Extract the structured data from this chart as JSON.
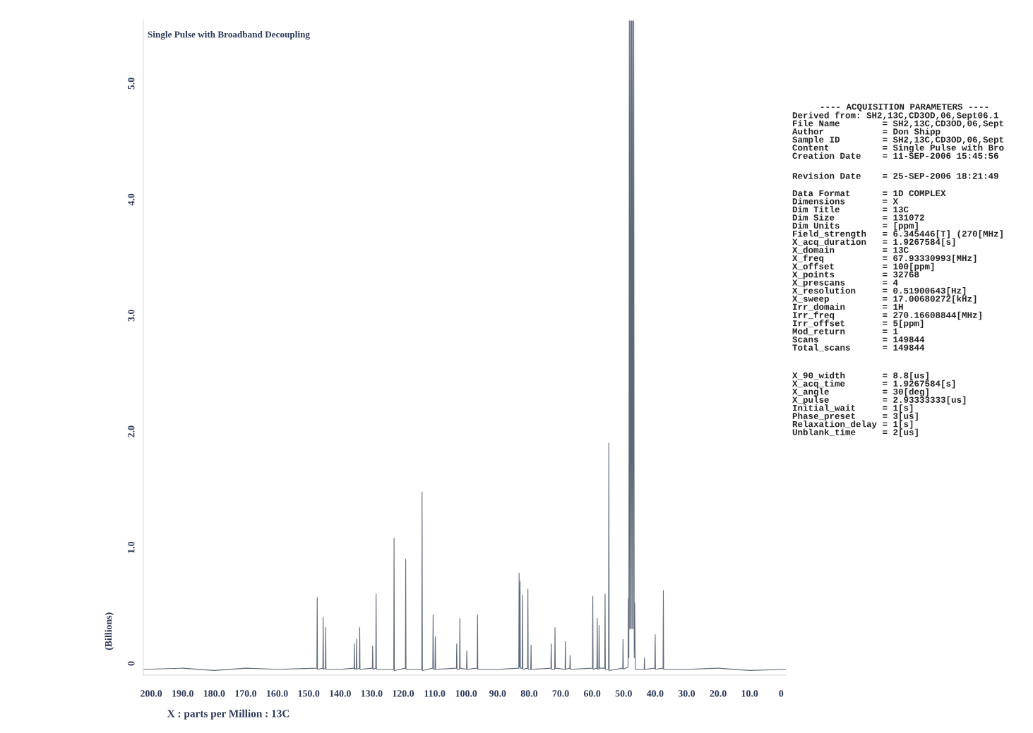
{
  "chart_data": [
    {
      "type": "line",
      "title": "Single Pulse with Broadband Decoupling",
      "xlabel": "X : parts per Million : 13C",
      "ylabel": "(Billions)",
      "x": [
        202.4,
        190,
        180,
        170,
        160,
        147.4,
        147.3,
        147.2,
        145.5,
        145.4,
        145.3,
        144.7,
        144.6,
        144.5,
        140,
        135.6,
        135.5,
        135.4,
        134.9,
        134.8,
        134.7,
        133.9,
        133.8,
        133.7,
        129.8,
        129.7,
        129.6,
        128.7,
        128.6,
        128.5,
        123.0,
        122.9,
        122.8,
        119.3,
        119.2,
        119.1,
        114.1,
        114.0,
        113.9,
        110.6,
        110.5,
        110.4,
        109.9,
        109.8,
        109.7,
        103.1,
        103.0,
        102.9,
        102.1,
        102.0,
        101.9,
        99.9,
        99.8,
        99.7,
        96.5,
        96.4,
        96.3,
        90,
        83.3,
        83.2,
        83.05,
        82.9,
        82.8,
        82.2,
        82.1,
        82.0,
        80.5,
        80.4,
        80.3,
        79.5,
        79.4,
        79.3,
        73.1,
        73.0,
        72.9,
        71.9,
        71.8,
        71.7,
        68.6,
        68.5,
        68.4,
        67.1,
        67.0,
        66.9,
        59.9,
        59.8,
        59.7,
        58.5,
        58.4,
        58.3,
        57.9,
        57.8,
        57.7,
        56.0,
        55.9,
        55.8,
        54.8,
        54.7,
        54.6,
        50.3,
        50.2,
        50.1,
        48.6,
        48.5,
        48.35,
        48.2,
        48.05,
        47.9,
        47.7,
        47.5,
        47.35,
        47.2,
        47.0,
        46.8,
        46.65,
        46.5,
        46.3,
        43.5,
        43.4,
        43.3,
        40.1,
        40.0,
        39.9,
        37.5,
        37.4,
        37.3,
        30,
        20,
        10,
        -1.4
      ],
      "series": [
        {
          "color": "#5d6878",
          "values": [
            -0.05,
            -0.04,
            -0.06,
            -0.04,
            -0.05,
            -0.04,
            0.57,
            -0.05,
            -0.04,
            0.4,
            -0.05,
            -0.04,
            0.31,
            -0.05,
            -0.05,
            -0.04,
            0.17,
            -0.05,
            -0.04,
            0.21,
            -0.05,
            -0.04,
            0.31,
            -0.05,
            -0.04,
            0.15,
            -0.05,
            -0.04,
            0.6,
            -0.05,
            -0.05,
            1.08,
            -0.06,
            -0.04,
            0.9,
            -0.05,
            -0.05,
            1.48,
            -0.06,
            -0.04,
            0.42,
            -0.05,
            -0.05,
            0.23,
            -0.05,
            -0.04,
            0.17,
            -0.05,
            -0.05,
            0.39,
            -0.04,
            -0.05,
            0.11,
            -0.05,
            -0.04,
            0.42,
            -0.05,
            -0.05,
            -0.04,
            0.78,
            -0.03,
            0.71,
            -0.04,
            -0.04,
            0.59,
            -0.05,
            -0.04,
            0.64,
            -0.05,
            -0.05,
            0.16,
            -0.05,
            -0.04,
            0.17,
            -0.05,
            -0.05,
            0.31,
            -0.04,
            -0.05,
            0.19,
            -0.05,
            -0.04,
            0.07,
            -0.05,
            -0.04,
            0.58,
            -0.05,
            -0.04,
            0.39,
            -0.05,
            -0.05,
            0.33,
            -0.04,
            -0.04,
            0.6,
            -0.05,
            -0.05,
            1.9,
            -0.06,
            -0.04,
            0.21,
            -0.05,
            -0.03,
            0.56,
            0.05,
            5.54,
            0.3,
            5.54,
            0.3,
            5.54,
            0.3,
            5.54,
            0.3,
            5.54,
            0.05,
            0.52,
            -0.05,
            -0.05,
            0.05,
            -0.05,
            -0.04,
            0.25,
            -0.05,
            -0.04,
            0.63,
            -0.05,
            -0.05,
            -0.04,
            -0.06,
            -0.05
          ]
        }
      ],
      "xlim": [
        202.5,
        -1.5
      ],
      "ylim": [
        -0.1,
        5.55
      ],
      "xticks": [
        {
          "value": 200,
          "label": "200.0"
        },
        {
          "value": 190,
          "label": "190.0"
        },
        {
          "value": 180,
          "label": "180.0"
        },
        {
          "value": 170,
          "label": "170.0"
        },
        {
          "value": 160,
          "label": "160.0"
        },
        {
          "value": 150,
          "label": "150.0"
        },
        {
          "value": 140,
          "label": "140.0"
        },
        {
          "value": 130,
          "label": "130.0"
        },
        {
          "value": 120,
          "label": "120.0"
        },
        {
          "value": 110,
          "label": "110.0"
        },
        {
          "value": 100,
          "label": "100.0"
        },
        {
          "value": 90,
          "label": "90.0"
        },
        {
          "value": 80,
          "label": "80.0"
        },
        {
          "value": 70,
          "label": "70.0"
        },
        {
          "value": 60,
          "label": "60.0"
        },
        {
          "value": 50,
          "label": "50.0"
        },
        {
          "value": 40,
          "label": "40.0"
        },
        {
          "value": 30,
          "label": "30.0"
        },
        {
          "value": 20,
          "label": "20.0"
        },
        {
          "value": 10,
          "label": "10.0"
        },
        0
      ],
      "yticks": [
        0,
        {
          "value": 1,
          "label": "1.0"
        },
        {
          "value": 2,
          "label": "2.0"
        },
        {
          "value": 3,
          "label": "3.0"
        },
        {
          "value": 4,
          "label": "4.0"
        },
        {
          "value": 5,
          "label": "5.0"
        }
      ]
    },
    {
      "type": "other",
      "title": "---- ACQUISITION PARAMETERS ----",
      "annotations": [
        "Derived from: SH2,13C,CD3OD,06,Sept06.1\nFile Name        = SH2,13C,CD3OD,06,Sept\nAuthor           = Don Shipp\nSample ID        = SH2,13C,CD3OD,06,Sept\nContent          = Single Pulse with Bro\nCreation Date    = 11-SEP-2006 15:45:56",
        "Revision Date    = 25-SEP-2006 18:21:49",
        "Data Format      = 1D COMPLEX\nDimensions       = X\nDim Title        = 13C\nDim Size         = 131072\nDim Units        = [ppm]\nField_strength   = 6.345446[T] (270[MHz]\nX_acq_duration   = 1.9267584[s]\nX_domain         = 13C\nX_freq           = 67.93330993[MHz]\nX_offset         = 100[ppm]\nX_points         = 32768\nX_prescans       = 4\nX_resolution     = 0.51900643[Hz]\nX_sweep          = 17.00680272[kHz]\nIrr_domain       = 1H\nIrr_freq         = 270.16608844[MHz]\nIrr_offset       = 5[ppm]\nMod_return       = 1\nScans            = 149844\nTotal_scans      = 149844",
        "X_90_width       = 8.8[us]\nX_acq_time       = 1.9267584[s]\nX_angle          = 30[deg]\nX_pulse          = 2.93333333[us]\nInitial_wait     = 1[s]\nPhase_preset     = 3[us]\nRelaxation_delay = 1[s]\nUnblank_time     = 2[us]"
      ]
    }
  ]
}
